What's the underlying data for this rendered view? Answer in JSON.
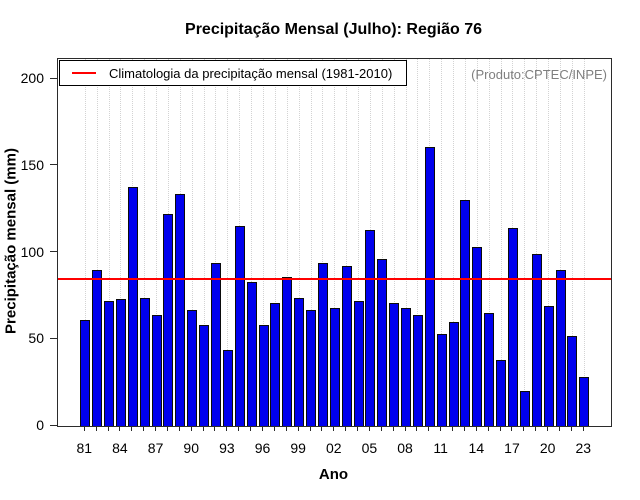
{
  "title": "Precipitação Mensal (Julho): Região 76",
  "watermark": "(Produto:CPTEC/INPE)",
  "legend": {
    "label": "Climatologia da precipitação mensal (1981-2010)",
    "line_color": "#ff0000"
  },
  "chart_data": {
    "type": "bar",
    "title": "Precipitação Mensal (Julho): Região 76",
    "xlabel": "Ano",
    "ylabel": "Precipitação mensal (mm)",
    "years": [
      1981,
      1982,
      1983,
      1984,
      1985,
      1986,
      1987,
      1988,
      1989,
      1990,
      1991,
      1992,
      1993,
      1994,
      1995,
      1996,
      1997,
      1998,
      1999,
      2000,
      2001,
      2002,
      2003,
      2004,
      2005,
      2006,
      2007,
      2008,
      2009,
      2010,
      2011,
      2012,
      2013,
      2014,
      2015,
      2016,
      2017,
      2018,
      2019,
      2020,
      2021,
      2022,
      2023
    ],
    "values": [
      61,
      90,
      72,
      73,
      138,
      74,
      64,
      122,
      134,
      67,
      58,
      94,
      44,
      115,
      83,
      58,
      71,
      86,
      74,
      67,
      94,
      68,
      92,
      72,
      113,
      96,
      71,
      68,
      64,
      161,
      53,
      60,
      130,
      103,
      65,
      38,
      114,
      20,
      99,
      69,
      90,
      52,
      28
    ],
    "x_tick_labels": [
      "81",
      "84",
      "87",
      "90",
      "93",
      "96",
      "99",
      "02",
      "05",
      "08",
      "11",
      "14",
      "17",
      "20",
      "23"
    ],
    "x_label_every": 3,
    "y_ticks": [
      0,
      50,
      100,
      150,
      200
    ],
    "ylim": [
      0,
      200
    ],
    "climatology_line": 84.8,
    "legend_position": "top-left",
    "grid": "vertical-dotted",
    "bar_color": "#0000ee",
    "bar_border_color": "#0b0b0b",
    "grid_color": "#d3d3d3",
    "climatology_color": "#ff0000",
    "watermark_color": "#7f7f7f"
  }
}
